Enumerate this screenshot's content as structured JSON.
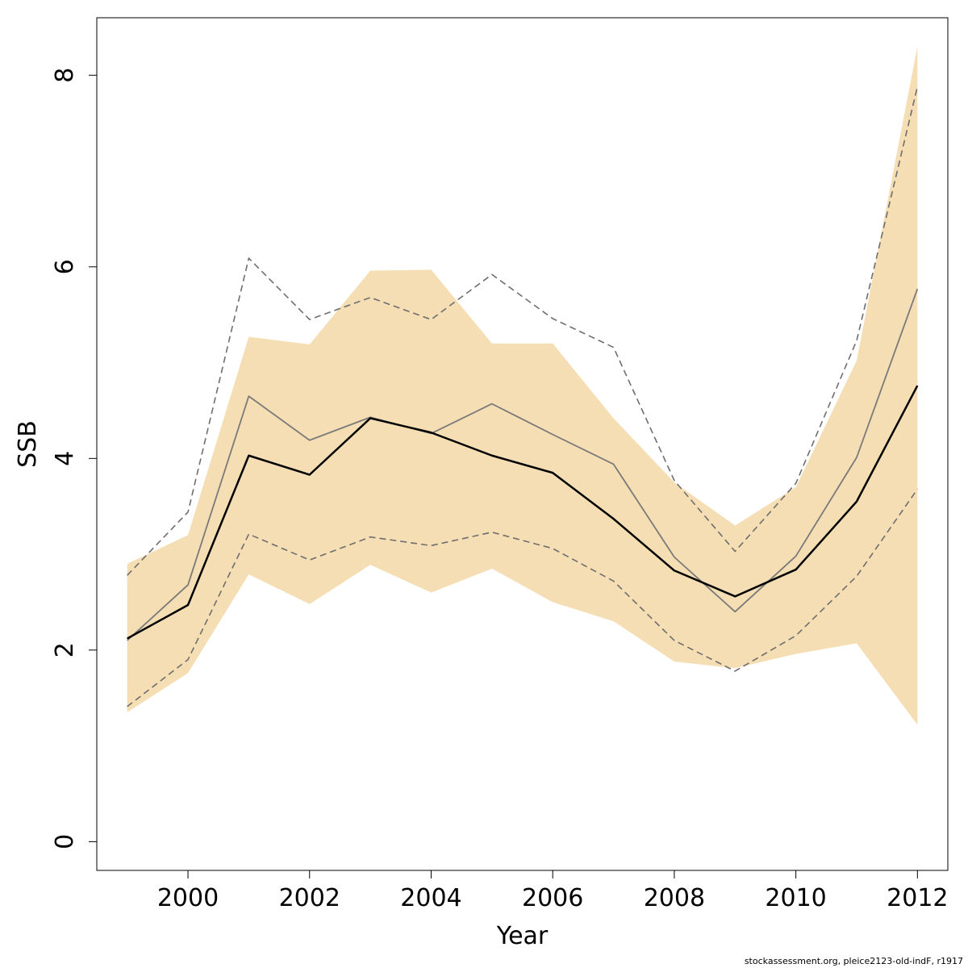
{
  "chart_data": {
    "type": "line",
    "xlabel": "Year",
    "ylabel": "SSB",
    "xlim": [
      1998.5,
      2012.5
    ],
    "ylim": [
      -0.3,
      8.6
    ],
    "x_ticks": [
      2000,
      2002,
      2004,
      2006,
      2008,
      2010,
      2012
    ],
    "y_ticks": [
      0,
      2,
      4,
      6,
      8
    ],
    "grid": false,
    "years": [
      1999,
      2000,
      2001,
      2002,
      2003,
      2004,
      2005,
      2006,
      2007,
      2008,
      2009,
      2010,
      2011,
      2012
    ],
    "band": {
      "color": "#f5deb3",
      "lower": [
        1.35,
        1.76,
        2.79,
        2.48,
        2.89,
        2.6,
        2.85,
        2.5,
        2.3,
        1.88,
        1.81,
        1.96,
        2.07,
        1.22
      ],
      "upper": [
        2.9,
        3.2,
        5.27,
        5.19,
        5.96,
        5.97,
        5.2,
        5.2,
        4.42,
        3.75,
        3.3,
        3.7,
        5.02,
        8.3
      ]
    },
    "series": [
      {
        "style": "solid",
        "color": "#000000",
        "width": 2.5,
        "values": [
          2.12,
          2.47,
          4.03,
          3.83,
          4.42,
          4.27,
          4.03,
          3.85,
          3.37,
          2.83,
          2.56,
          2.84,
          3.55,
          4.76
        ]
      },
      {
        "style": "solid",
        "color": "#7a7a7a",
        "width": 1.8,
        "values": [
          2.1,
          2.68,
          4.65,
          4.19,
          4.43,
          4.26,
          4.57,
          4.25,
          3.94,
          2.97,
          2.4,
          2.98,
          4.01,
          5.77
        ]
      },
      {
        "style": "dashed",
        "color": "#6e6e6e",
        "width": 1.6,
        "values": [
          2.78,
          3.44,
          6.09,
          5.45,
          5.68,
          5.45,
          5.92,
          5.46,
          5.16,
          3.77,
          3.03,
          3.74,
          5.23,
          7.88
        ]
      },
      {
        "style": "dashed",
        "color": "#6e6e6e",
        "width": 1.6,
        "values": [
          1.41,
          1.9,
          3.21,
          2.94,
          3.18,
          3.09,
          3.23,
          3.06,
          2.72,
          2.1,
          1.78,
          2.15,
          2.77,
          3.68
        ]
      }
    ]
  },
  "footer": "stockassessment.org, pleice2123-old-indF, r1917"
}
